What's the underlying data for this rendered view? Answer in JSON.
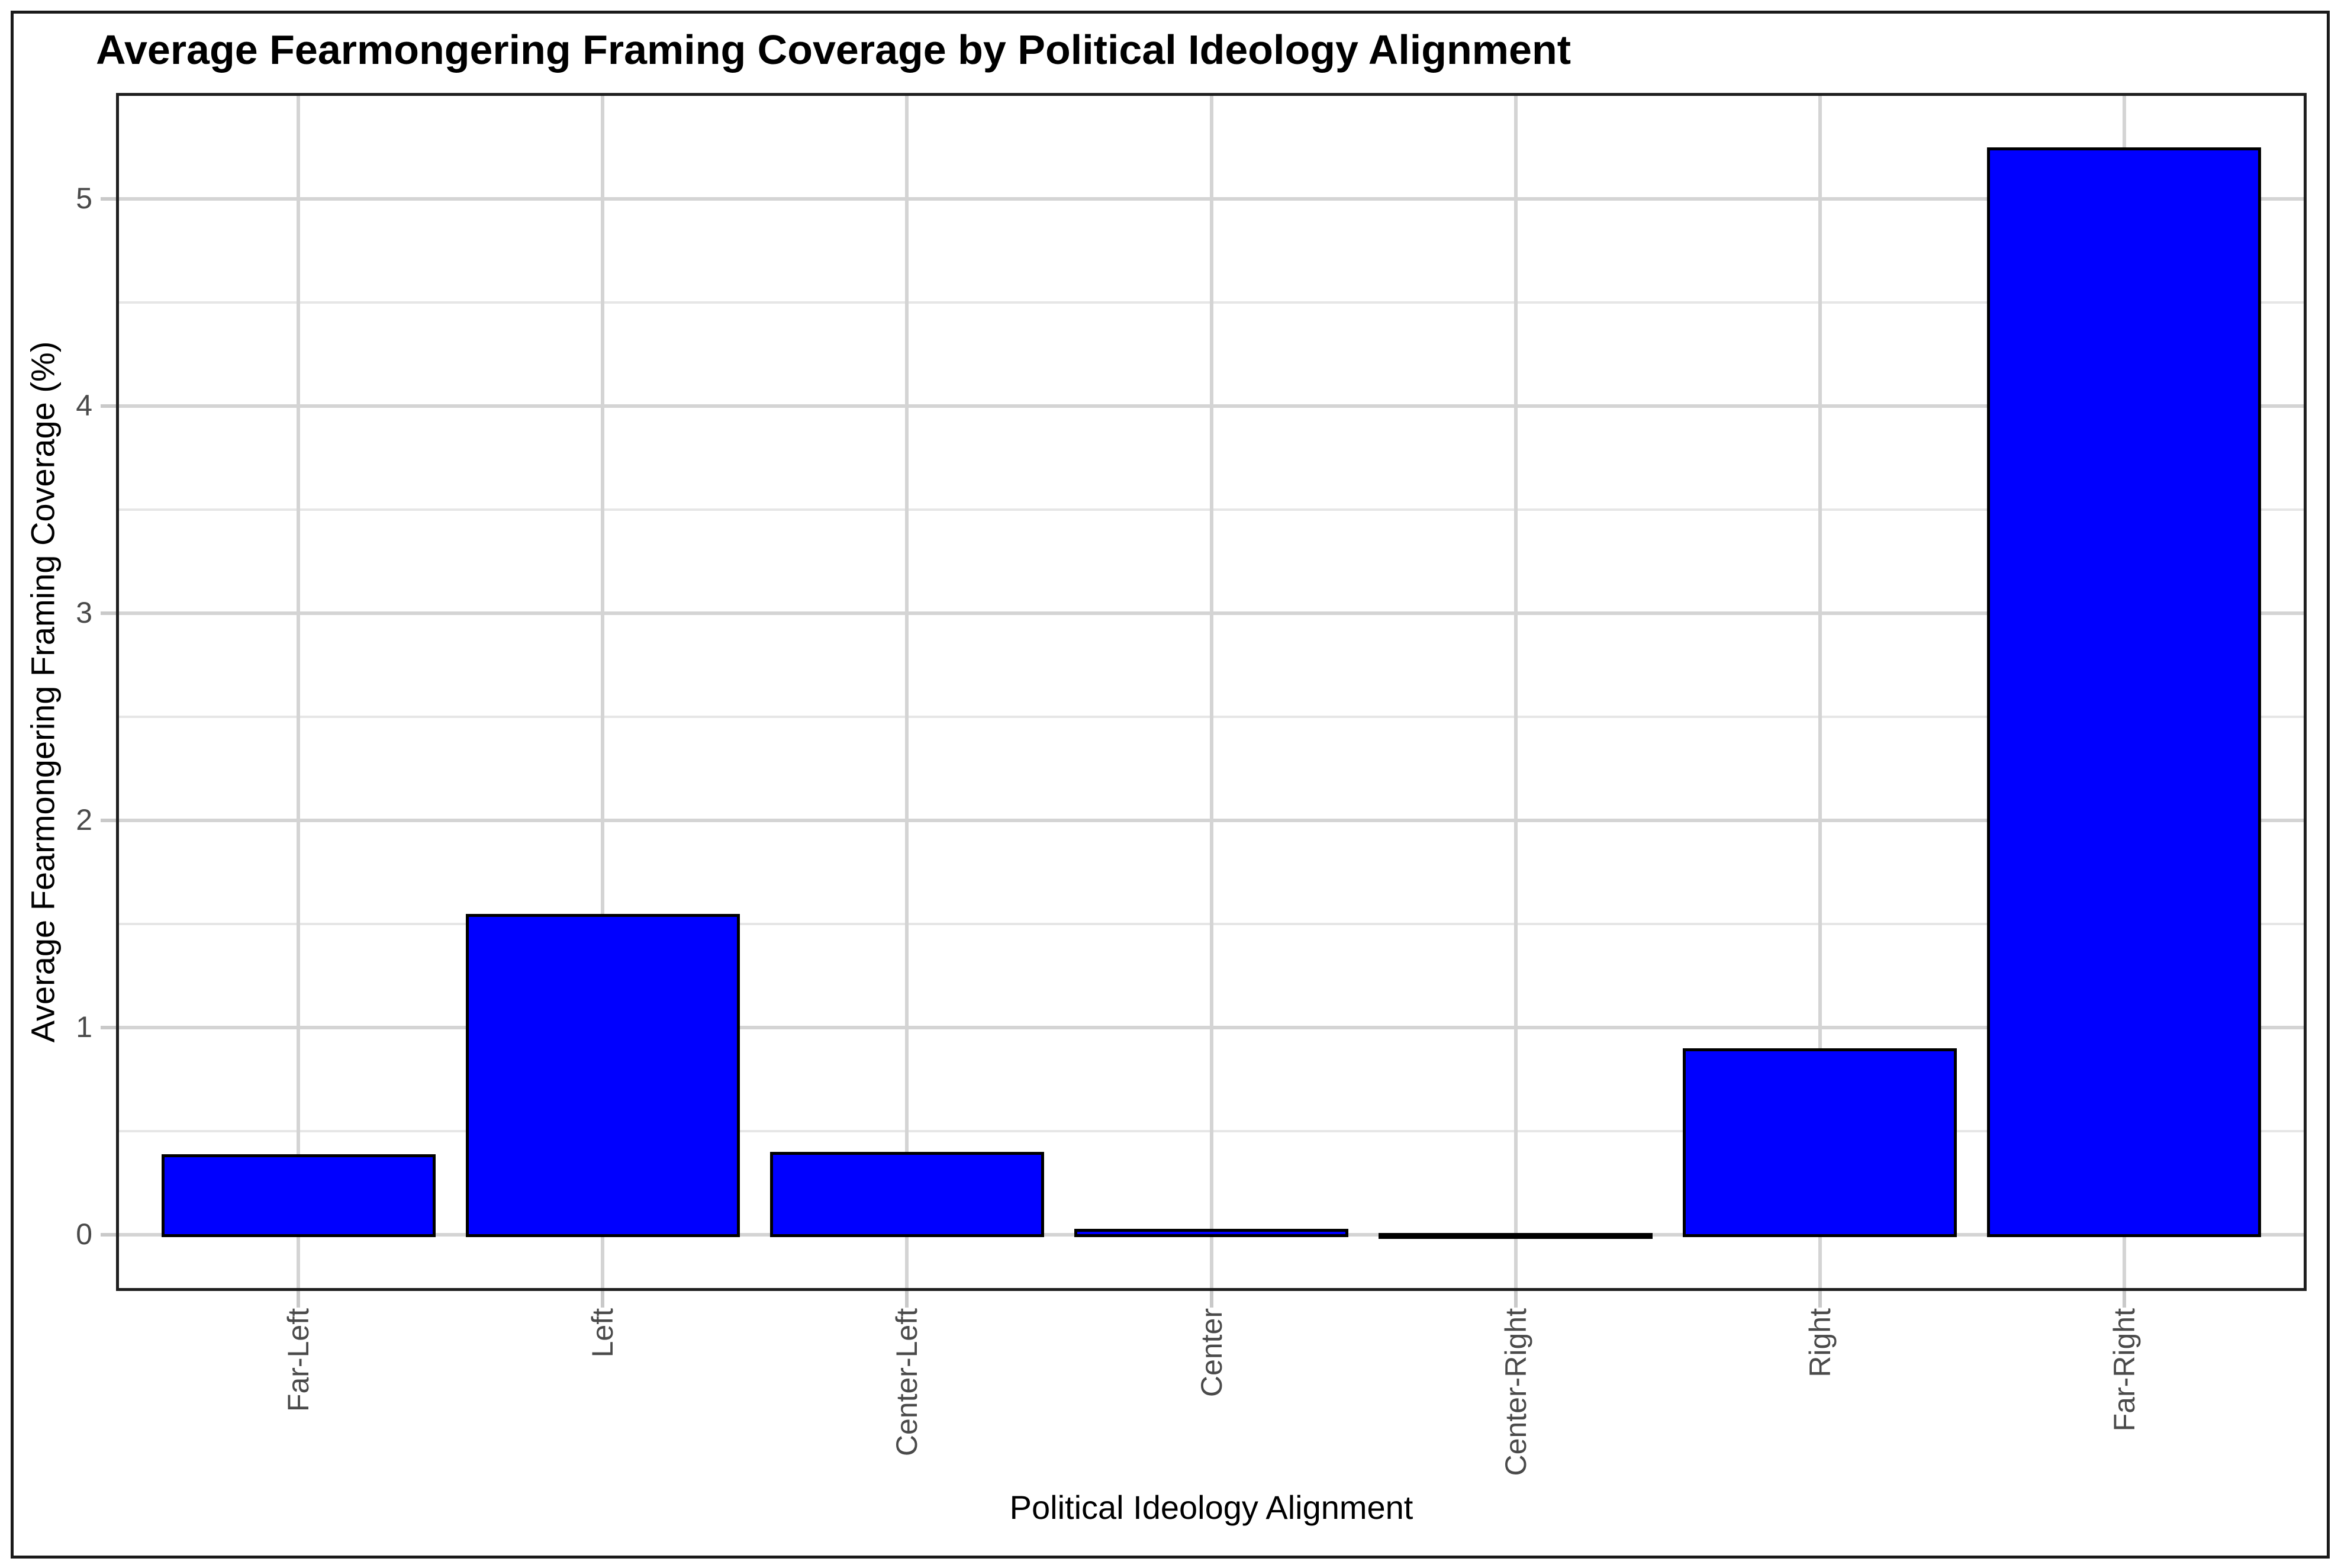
{
  "figure": {
    "title": "Average Fearmongering Framing Coverage by Political Ideology Alignment"
  },
  "chart_data": {
    "type": "bar",
    "title": "Average Fearmongering Framing Coverage by Political Ideology Alignment",
    "xlabel": "Political Ideology Alignment",
    "ylabel": "Average Fearmongering Framing Coverage (%)",
    "categories": [
      "Far-Left",
      "Left",
      "Center-Left",
      "Center",
      "Center-Right",
      "Right",
      "Far-Right"
    ],
    "values": [
      0.39,
      1.55,
      0.4,
      0.03,
      0.01,
      0.9,
      5.25
    ],
    "yticks": [
      0,
      1,
      2,
      3,
      4,
      5
    ],
    "ytick_labels": [
      "0",
      "1",
      "2",
      "3",
      "4",
      "5"
    ],
    "ylim": [
      -0.27,
      5.51
    ],
    "x_tick_label_rotation_deg": 90,
    "bar_width_fraction": 0.9,
    "grid": {
      "major_horizontal": true,
      "minor_horizontal_step": 0.5,
      "vertical_at_category_centers": true
    },
    "legend": "none"
  },
  "style": {
    "bar_fill": "#0000ff",
    "bar_edge": "#000000",
    "grid_major": "#d4d4d4",
    "grid_minor": "#e6e6e6",
    "tick_color": "#c9c9c9",
    "tick_label_color": "#4a4a4a",
    "title_color": "#000000",
    "axis_title_color": "#000000",
    "panel_border": "#1f1f1f",
    "figure_border": "#1a1a1a",
    "background": "#ffffff"
  }
}
